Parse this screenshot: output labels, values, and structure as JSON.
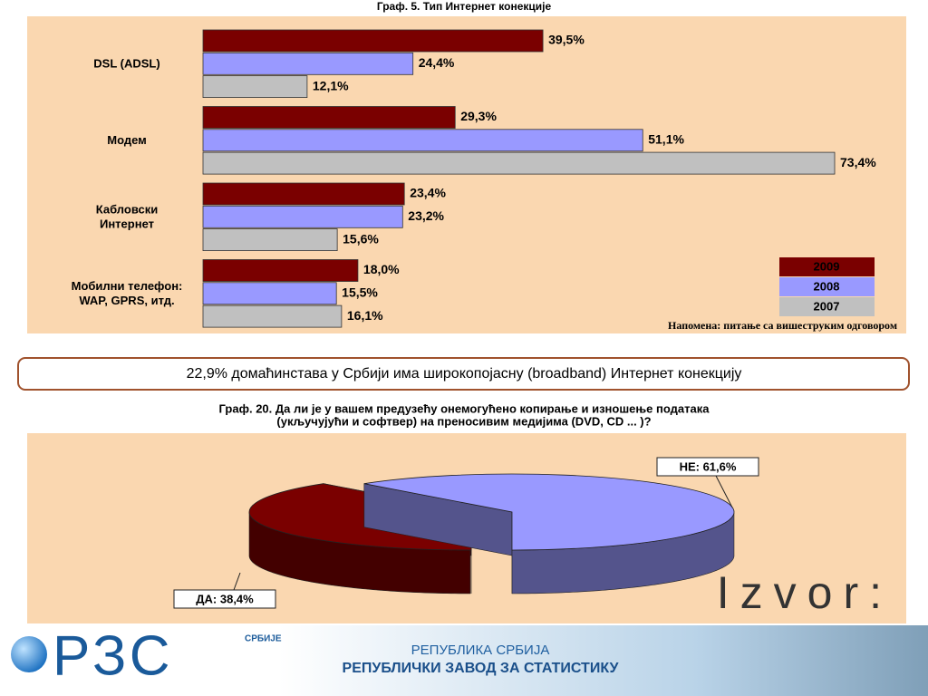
{
  "chart_data": [
    {
      "type": "bar",
      "orientation": "horizontal",
      "title": "Граф. 5. Тип Интернет конекције",
      "categories": [
        [
          "DSL (ADSL)"
        ],
        [
          "Модем"
        ],
        [
          "Кабловски",
          "Интернет"
        ],
        [
          "Мобилни телефон:",
          "WAP, GPRS, итд."
        ]
      ],
      "series": [
        {
          "name": "2009",
          "color": "#7a0000",
          "values": [
            39.5,
            29.3,
            23.4,
            18.0
          ],
          "value_labels": [
            "39,5%",
            "29,3%",
            "23,4%",
            "18,0%"
          ]
        },
        {
          "name": "2008",
          "color": "#9999ff",
          "values": [
            24.4,
            51.1,
            23.2,
            15.5
          ],
          "value_labels": [
            "24,4%",
            "51,1%",
            "23,2%",
            "15,5%"
          ]
        },
        {
          "name": "2007",
          "color": "#c0c0c0",
          "values": [
            12.1,
            73.4,
            15.6,
            16.1
          ],
          "value_labels": [
            "12,1%",
            "73,4%",
            "15,6%",
            "16,1%"
          ]
        }
      ],
      "legend": "bottom-right",
      "note": "Напомена: питање са вишеструким одговором"
    },
    {
      "type": "pie",
      "style": "3d",
      "explode": 1,
      "title": [
        "Граф. 20. Да ли је у вашем предузећу онемогућено копирање и изношење података",
        "(укључујући и софтвер) на преносивим медијима (DVD, CD ... )?"
      ],
      "values": [
        61.6,
        38.4
      ],
      "value_labels": [
        "НЕ: 61,6%",
        "ДА: 38,4%"
      ],
      "colors": [
        "#9999ff",
        "#7a0000"
      ]
    }
  ],
  "callout": "22,9%  домаћинстава у Србији има широкопојасну (broadband) Интернет конекцију",
  "source": "Izvor:",
  "logo": {
    "text": "РЗС",
    "sub": "СРБИЈЕ"
  },
  "banner": {
    "line1": "РЕПУБЛИКА СРБИЈА",
    "line2": "РЕПУБЛИЧКИ ЗАВОД ЗА СТАТИСТИКУ"
  }
}
